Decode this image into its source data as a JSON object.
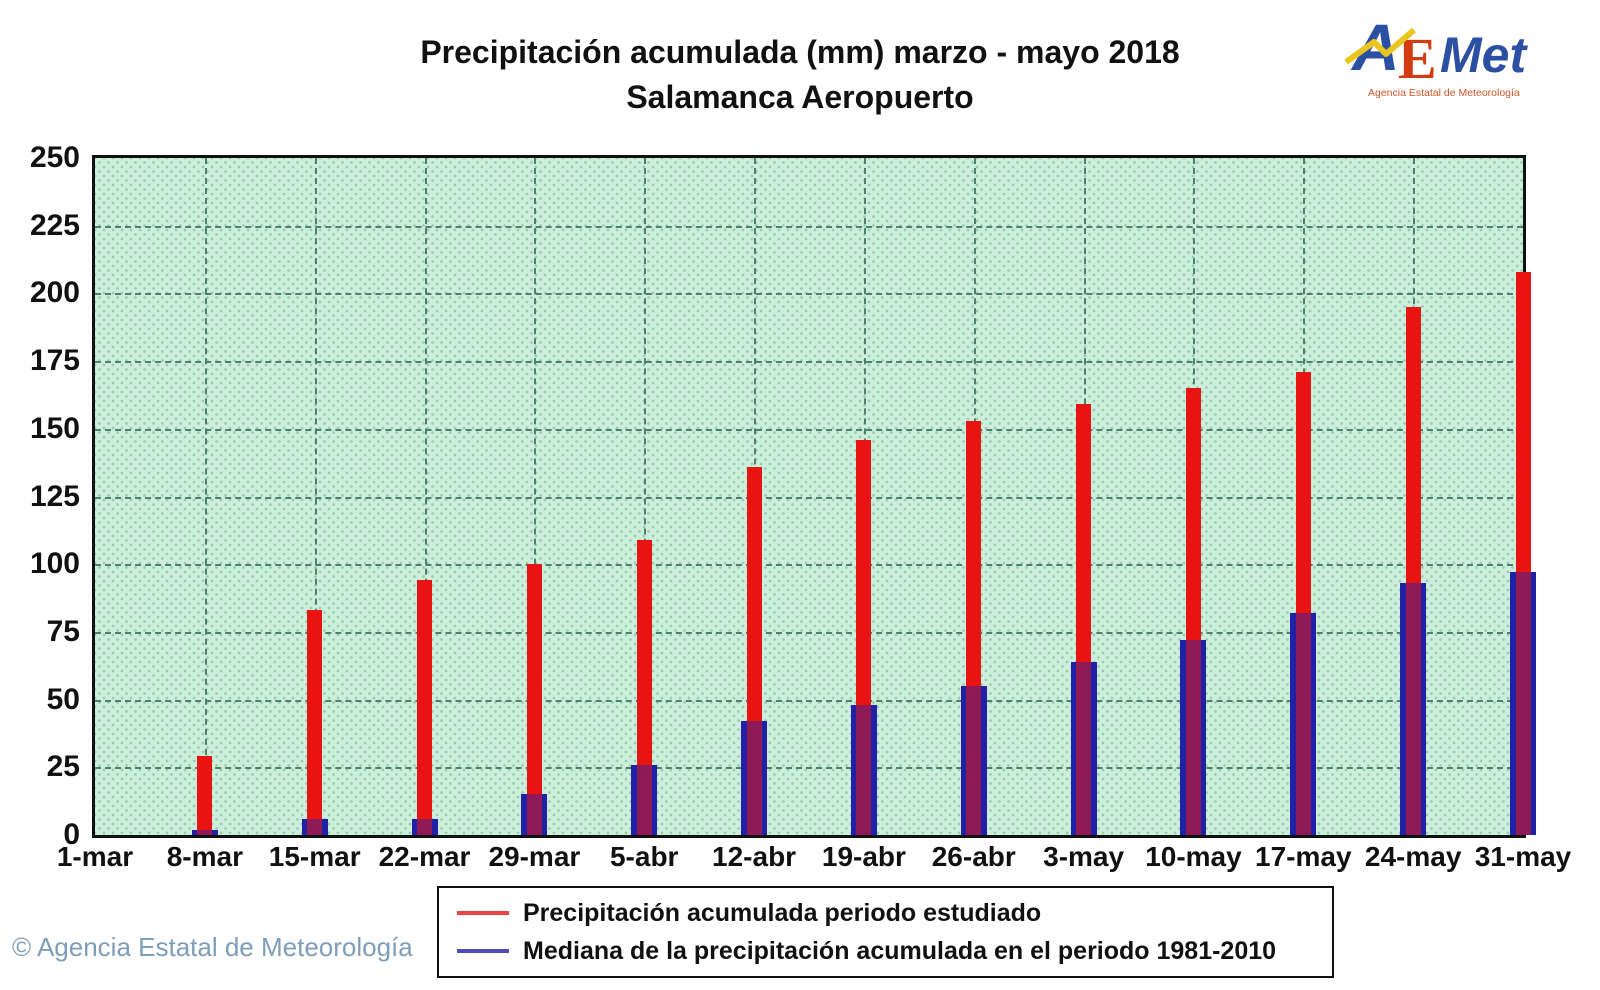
{
  "header": {
    "title_line1": "Precipitación acumulada (mm) marzo - mayo 2018",
    "title_line2": "Salamanca Aeropuerto"
  },
  "logo": {
    "text_a": "A",
    "text_e": "E",
    "text_met": "Met",
    "subtext": "Agencia Estatal de Meteorología",
    "colors": {
      "blue": "#2b4fa2",
      "red": "#d23c10",
      "yellow": "#e9c51f",
      "orange": "#cf5426"
    }
  },
  "footer": {
    "copyright": "© Agencia Estatal de Meteorología",
    "color": "#7e9db9"
  },
  "chart_data": {
    "type": "bar",
    "title": "Precipitación acumulada (mm) marzo - mayo 2018",
    "subtitle": "Salamanca Aeropuerto",
    "categories": [
      "1-mar",
      "8-mar",
      "15-mar",
      "22-mar",
      "29-mar",
      "5-abr",
      "12-abr",
      "19-abr",
      "26-abr",
      "3-may",
      "10-may",
      "17-may",
      "24-may",
      "31-may"
    ],
    "series": [
      {
        "name": "Precipitación acumulada periodo estudiado",
        "color": "#e81414",
        "values": [
          0,
          29,
          83,
          94,
          100,
          109,
          136,
          146,
          153,
          159,
          165,
          171,
          195,
          208
        ]
      },
      {
        "name": "Mediana de la precipitación acumulada en el periodo 1981-2010",
        "color": "#2121a8",
        "values": [
          0,
          2,
          6,
          6,
          15,
          26,
          42,
          48,
          55,
          64,
          72,
          82,
          93,
          97
        ]
      }
    ],
    "ylabel": "",
    "xlabel": "",
    "ylim": [
      0,
      250
    ],
    "ytick_step": 25,
    "grid": true,
    "plot_bg": "#cdeeda",
    "grid_color": "#4e7f68",
    "legend_position": "bottom"
  }
}
